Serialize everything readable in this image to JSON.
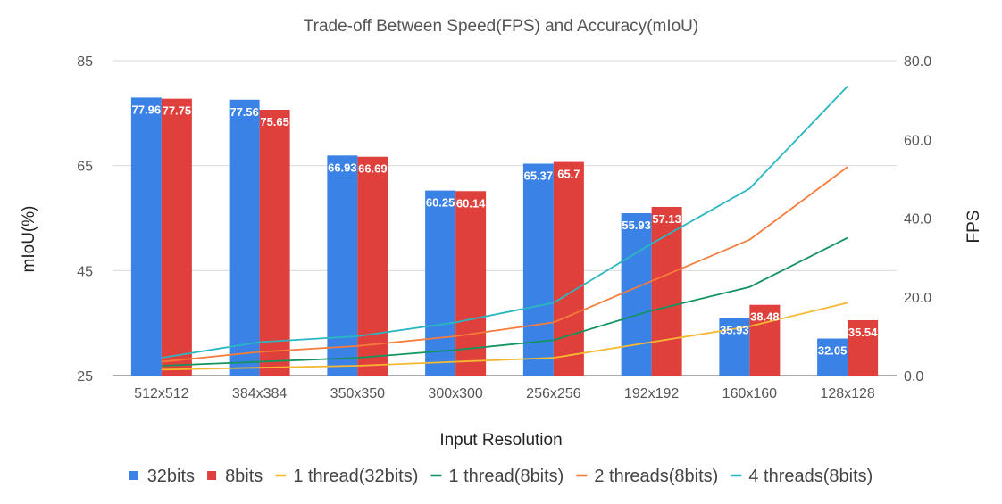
{
  "chart_data": {
    "type": "bar",
    "title": "Trade-off Between Speed(FPS) and Accuracy(mIoU)",
    "xlabel": "Input Resolution",
    "ylabel_left": "mIoU(%)",
    "ylabel_right": "FPS",
    "categories": [
      "512x512",
      "384x384",
      "350x350",
      "300x300",
      "256x256",
      "192x192",
      "160x160",
      "128x128"
    ],
    "y_left": {
      "min": 25,
      "max": 85,
      "ticks": [
        "25",
        "45",
        "65",
        "85"
      ]
    },
    "y_right": {
      "min": 0,
      "max": 80,
      "ticks": [
        "0.0",
        "20.0",
        "40.0",
        "60.0",
        "80.0"
      ]
    },
    "bar_series": [
      {
        "name": "32bits",
        "color": "#3b82e6",
        "values": [
          77.96,
          77.56,
          66.93,
          60.25,
          65.37,
          55.93,
          35.93,
          32.05
        ],
        "labels": [
          "77.96",
          "77.56",
          "66.93",
          "60.25",
          "65.37",
          "55.93",
          "35.93",
          "32.05"
        ]
      },
      {
        "name": "8bits",
        "color": "#e0403c",
        "values": [
          77.75,
          75.65,
          66.69,
          60.14,
          65.7,
          57.13,
          38.48,
          35.54
        ],
        "labels": [
          "77.75",
          "75.65",
          "66.69",
          "60.14",
          "65.7",
          "57.13",
          "38.48",
          "35.54"
        ]
      }
    ],
    "line_series": [
      {
        "name": "1 thread(32bits)",
        "color": "#f5b830",
        "values": [
          1.5,
          2.0,
          2.5,
          3.5,
          4.5,
          8.5,
          12.5,
          18.5
        ]
      },
      {
        "name": "1 thread(8bits)",
        "color": "#12935f",
        "values": [
          2.5,
          3.5,
          4.5,
          6.5,
          9.0,
          16.5,
          22.5,
          35.0
        ]
      },
      {
        "name": "2 threads(8bits)",
        "color": "#f57c3a",
        "values": [
          3.5,
          6.0,
          7.5,
          10.0,
          13.5,
          24.0,
          34.5,
          53.0
        ]
      },
      {
        "name": "4 threads(8bits)",
        "color": "#2ab7c2",
        "values": [
          4.5,
          8.5,
          10.0,
          13.5,
          18.5,
          33.5,
          47.5,
          73.5
        ]
      }
    ],
    "grid": true,
    "legend_position": "bottom"
  }
}
